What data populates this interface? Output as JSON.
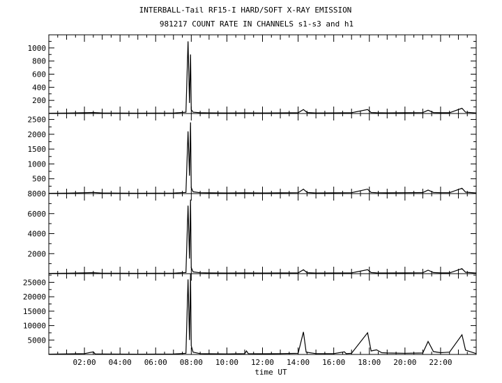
{
  "title": "INTERBALL-Tail RF15-I HARD/SOFT X-RAY EMISSION",
  "subtitle": "981217  COUNT RATE IN CHANNELS s1-s3 and h1",
  "chart_data": [
    {
      "type": "line",
      "panel": "s1",
      "ylim": [
        0,
        1200
      ],
      "yticks": [
        200,
        400,
        600,
        800,
        1000
      ],
      "xlim": [
        0,
        24
      ],
      "series": [
        {
          "values": [
            [
              0,
              4
            ],
            [
              1,
              6
            ],
            [
              2,
              12
            ],
            [
              2.5,
              15
            ],
            [
              3,
              8
            ],
            [
              4,
              6
            ],
            [
              5,
              5
            ],
            [
              6,
              6
            ],
            [
              7,
              7
            ],
            [
              7.7,
              20
            ],
            [
              7.82,
              1100
            ],
            [
              7.9,
              160
            ],
            [
              7.96,
              900
            ],
            [
              8.0,
              60
            ],
            [
              8.1,
              20
            ],
            [
              8.5,
              12
            ],
            [
              9,
              10
            ],
            [
              10,
              8
            ],
            [
              11,
              10
            ],
            [
              12,
              9
            ],
            [
              13,
              10
            ],
            [
              14,
              12
            ],
            [
              14.3,
              60
            ],
            [
              14.5,
              15
            ],
            [
              15,
              8
            ],
            [
              16,
              10
            ],
            [
              17,
              12
            ],
            [
              17.9,
              60
            ],
            [
              18.1,
              15
            ],
            [
              18.4,
              12
            ],
            [
              19,
              10
            ],
            [
              20,
              12
            ],
            [
              21,
              14
            ],
            [
              21.3,
              50
            ],
            [
              21.6,
              15
            ],
            [
              22,
              12
            ],
            [
              22.5,
              12
            ],
            [
              23.2,
              80
            ],
            [
              23.4,
              20
            ],
            [
              24,
              8
            ]
          ]
        }
      ]
    },
    {
      "type": "line",
      "panel": "s2",
      "ylim": [
        0,
        2700
      ],
      "yticks": [
        500,
        1000,
        1500,
        2000,
        2500
      ],
      "xlim": [
        0,
        24
      ],
      "series": [
        {
          "values": [
            [
              0,
              10
            ],
            [
              1,
              15
            ],
            [
              2,
              30
            ],
            [
              2.5,
              40
            ],
            [
              3,
              20
            ],
            [
              4,
              15
            ],
            [
              5,
              12
            ],
            [
              6,
              15
            ],
            [
              7,
              18
            ],
            [
              7.7,
              40
            ],
            [
              7.82,
              2100
            ],
            [
              7.9,
              600
            ],
            [
              7.96,
              2400
            ],
            [
              8.0,
              200
            ],
            [
              8.1,
              60
            ],
            [
              8.5,
              30
            ],
            [
              9,
              25
            ],
            [
              10,
              20
            ],
            [
              11,
              25
            ],
            [
              12,
              22
            ],
            [
              13,
              25
            ],
            [
              14,
              30
            ],
            [
              14.3,
              150
            ],
            [
              14.5,
              40
            ],
            [
              15,
              20
            ],
            [
              16,
              25
            ],
            [
              17,
              30
            ],
            [
              17.9,
              150
            ],
            [
              18.1,
              40
            ],
            [
              18.4,
              30
            ],
            [
              19,
              25
            ],
            [
              20,
              30
            ],
            [
              21,
              35
            ],
            [
              21.3,
              120
            ],
            [
              21.6,
              40
            ],
            [
              22,
              30
            ],
            [
              22.5,
              30
            ],
            [
              23.2,
              180
            ],
            [
              23.4,
              50
            ],
            [
              24,
              20
            ]
          ]
        }
      ]
    },
    {
      "type": "line",
      "panel": "s3",
      "ylim": [
        0,
        8000
      ],
      "yticks": [
        2000,
        4000,
        6000,
        8000
      ],
      "xlim": [
        0,
        24
      ],
      "series": [
        {
          "values": [
            [
              0,
              30
            ],
            [
              1,
              40
            ],
            [
              2,
              80
            ],
            [
              2.5,
              100
            ],
            [
              3,
              50
            ],
            [
              4,
              40
            ],
            [
              5,
              35
            ],
            [
              6,
              40
            ],
            [
              7,
              50
            ],
            [
              7.7,
              120
            ],
            [
              7.82,
              6800
            ],
            [
              7.9,
              1500
            ],
            [
              7.96,
              7400
            ],
            [
              8.0,
              600
            ],
            [
              8.1,
              180
            ],
            [
              8.5,
              90
            ],
            [
              9,
              70
            ],
            [
              10,
              60
            ],
            [
              11,
              70
            ],
            [
              12,
              65
            ],
            [
              13,
              70
            ],
            [
              14,
              80
            ],
            [
              14.3,
              400
            ],
            [
              14.5,
              100
            ],
            [
              15,
              60
            ],
            [
              16,
              70
            ],
            [
              17,
              80
            ],
            [
              17.9,
              400
            ],
            [
              18.1,
              110
            ],
            [
              18.4,
              80
            ],
            [
              19,
              70
            ],
            [
              20,
              80
            ],
            [
              21,
              90
            ],
            [
              21.3,
              350
            ],
            [
              21.6,
              110
            ],
            [
              22,
              80
            ],
            [
              22.5,
              80
            ],
            [
              23.2,
              500
            ],
            [
              23.4,
              140
            ],
            [
              24,
              60
            ]
          ]
        }
      ]
    },
    {
      "type": "line",
      "panel": "h1",
      "ylim": [
        0,
        28000
      ],
      "yticks": [
        5000,
        10000,
        15000,
        20000,
        25000
      ],
      "xlim": [
        0,
        24
      ],
      "xticks": [
        2,
        4,
        6,
        8,
        10,
        12,
        14,
        16,
        18,
        20,
        22
      ],
      "xticklabels": [
        "02:00",
        "04:00",
        "06:00",
        "08:00",
        "10:00",
        "12:00",
        "14:00",
        "16:00",
        "18:00",
        "20:00",
        "22:00"
      ],
      "xlabel": "time UT",
      "series": [
        {
          "values": [
            [
              0,
              100
            ],
            [
              1,
              200
            ],
            [
              2,
              300
            ],
            [
              2.5,
              900
            ],
            [
              2.6,
              200
            ],
            [
              3,
              150
            ],
            [
              4,
              120
            ],
            [
              5,
              100
            ],
            [
              6,
              120
            ],
            [
              7,
              150
            ],
            [
              7.7,
              400
            ],
            [
              7.82,
              26000
            ],
            [
              7.9,
              5000
            ],
            [
              7.96,
              28000
            ],
            [
              8.0,
              3000
            ],
            [
              8.1,
              800
            ],
            [
              8.5,
              300
            ],
            [
              9,
              250
            ],
            [
              10,
              200
            ],
            [
              11,
              300
            ],
            [
              11.1,
              1200
            ],
            [
              11.2,
              300
            ],
            [
              12,
              250
            ],
            [
              13,
              300
            ],
            [
              14,
              400
            ],
            [
              14.3,
              7800
            ],
            [
              14.45,
              800
            ],
            [
              15,
              300
            ],
            [
              16,
              300
            ],
            [
              16.6,
              900
            ],
            [
              16.7,
              300
            ],
            [
              17,
              400
            ],
            [
              17.9,
              7500
            ],
            [
              18.1,
              1200
            ],
            [
              18.4,
              1600
            ],
            [
              18.7,
              600
            ],
            [
              19,
              500
            ],
            [
              20,
              400
            ],
            [
              21,
              500
            ],
            [
              21.3,
              4500
            ],
            [
              21.6,
              1000
            ],
            [
              22,
              600
            ],
            [
              22.5,
              800
            ],
            [
              23.2,
              6800
            ],
            [
              23.4,
              1500
            ],
            [
              24,
              300
            ]
          ]
        }
      ]
    }
  ]
}
